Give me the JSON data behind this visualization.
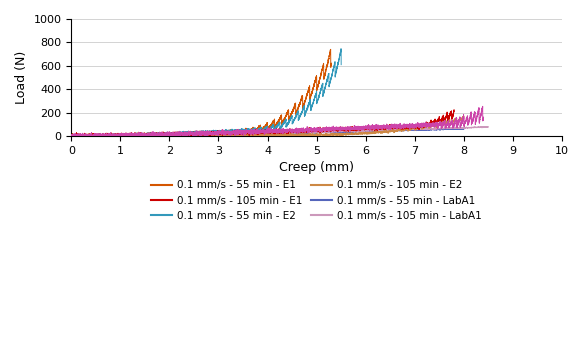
{
  "xlabel": "Creep (mm)",
  "ylabel": "Load (N)",
  "xlim": [
    0,
    10
  ],
  "ylim": [
    0,
    1000
  ],
  "xticks": [
    0,
    1,
    2,
    3,
    4,
    5,
    6,
    7,
    8,
    9,
    10
  ],
  "yticks": [
    0,
    200,
    400,
    600,
    800,
    1000
  ],
  "color_55E1": "#d45500",
  "color_55E2": "#3399bb",
  "color_55Lab": "#5566bb",
  "color_105E1": "#cc44aa",
  "color_105E2": "#cc8844",
  "color_105Lab": "#cc99bb",
  "legend_fontsize": 7.5,
  "axis_fontsize": 9
}
